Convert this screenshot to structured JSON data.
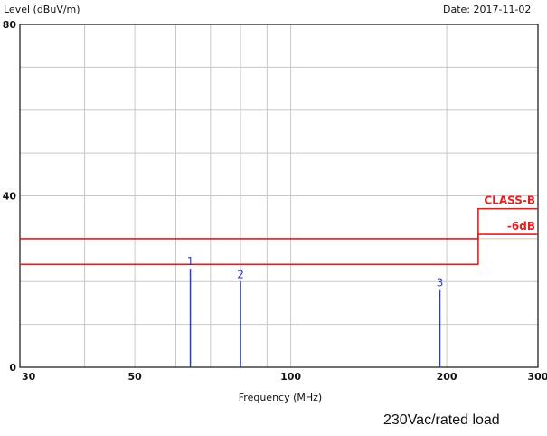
{
  "chart_data": {
    "type": "line",
    "ylabel": "Level (dBuV/m)",
    "xlabel": "Frequency (MHz)",
    "date": "Date: 2017-11-02",
    "x_scale": "log",
    "xlim": [
      30,
      300
    ],
    "ylim": [
      0,
      80
    ],
    "x_ticks": [
      {
        "value": 30,
        "label": "30"
      },
      {
        "value": 50,
        "label": "50"
      },
      {
        "value": 100,
        "label": "100"
      },
      {
        "value": 200,
        "label": "200"
      },
      {
        "value": 300,
        "label": "300"
      }
    ],
    "y_ticks": [
      {
        "value": 0,
        "label": "0"
      },
      {
        "value": 40,
        "label": "40"
      },
      {
        "value": 80,
        "label": "80"
      }
    ],
    "grid": true,
    "limit_lines": [
      {
        "name": "CLASS-B",
        "color": "#e02020",
        "points": [
          [
            30,
            30
          ],
          [
            230,
            30
          ],
          [
            230,
            37
          ],
          [
            300,
            37
          ]
        ]
      },
      {
        "name": "-6dB",
        "color": "#e02020",
        "points": [
          [
            30,
            24
          ],
          [
            230,
            24
          ],
          [
            230,
            31
          ],
          [
            300,
            31
          ]
        ]
      }
    ],
    "markers": [
      {
        "label": "1",
        "x": 64,
        "y": 23,
        "color": "#2a3cc4"
      },
      {
        "label": "2",
        "x": 80,
        "y": 20,
        "color": "#2a3cc4"
      },
      {
        "label": "3",
        "x": 194,
        "y": 18,
        "color": "#2a3cc4"
      }
    ],
    "grid_color": "#c8c8c8",
    "axis_color": "#111111"
  },
  "note": "230Vac/rated load"
}
